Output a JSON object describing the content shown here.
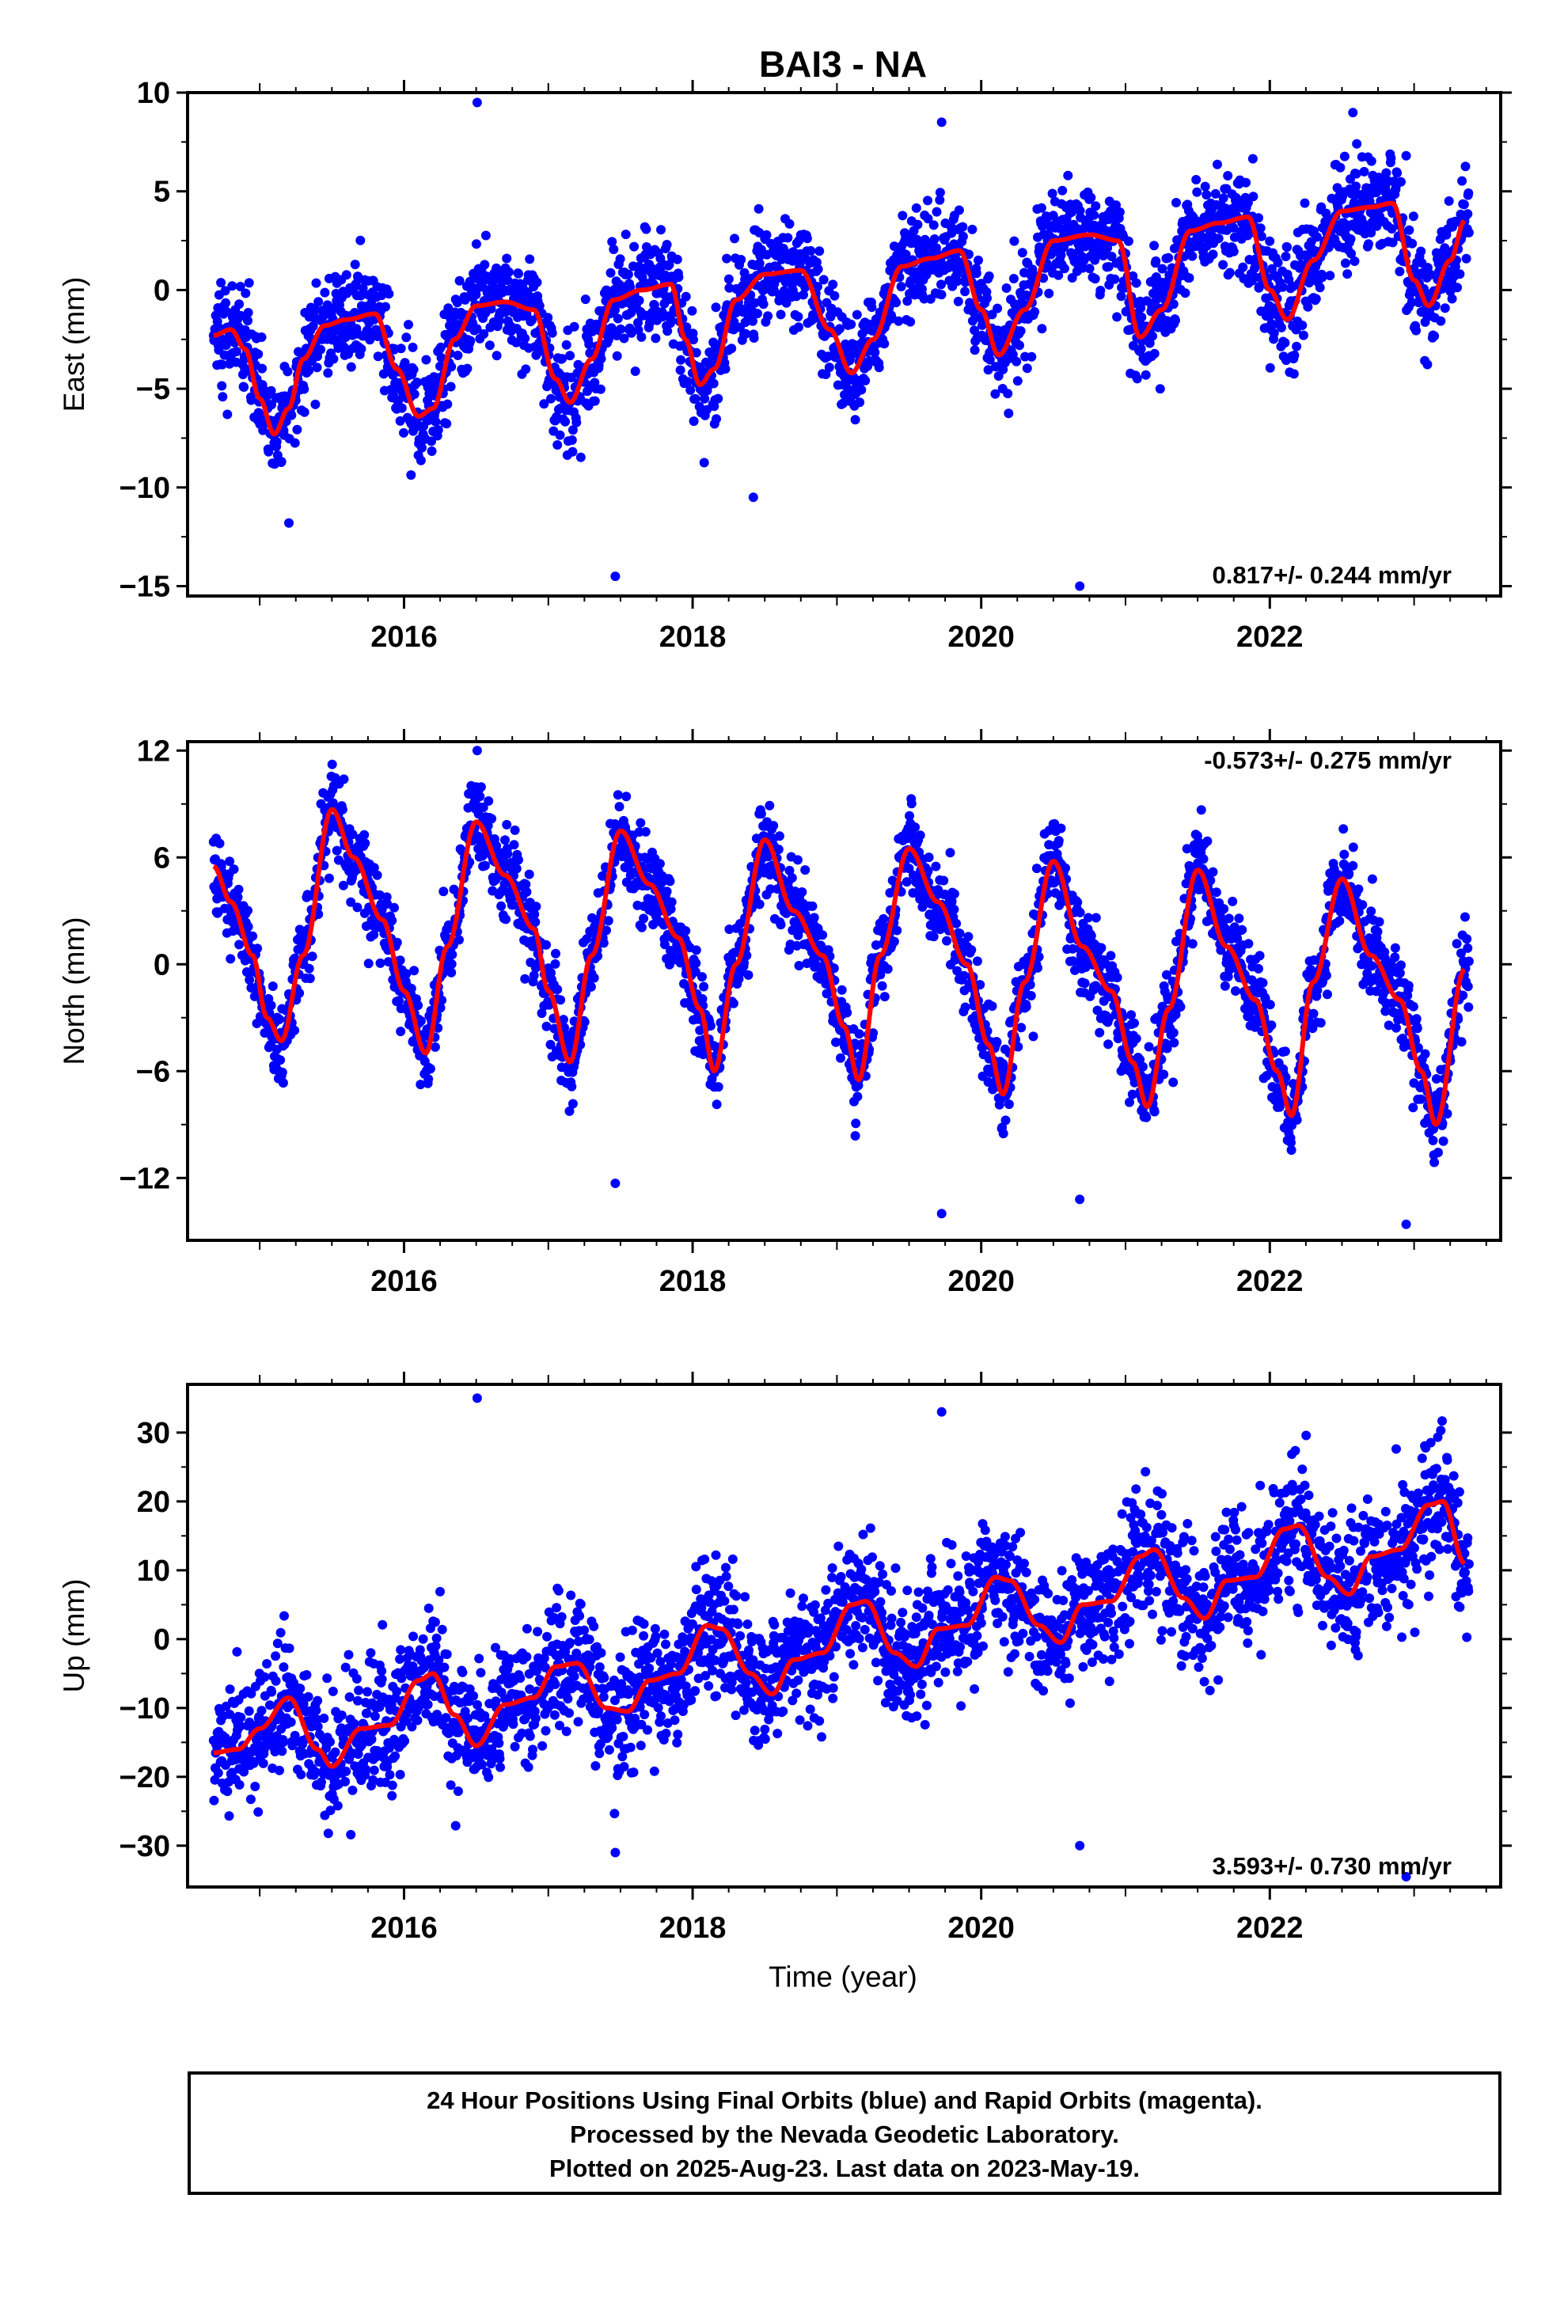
{
  "title": "BAI3 - NA",
  "xlabel": "Time (year)",
  "footer": {
    "lines": [
      "24 Hour Positions Using Final Orbits (blue) and Rapid Orbits (magenta).",
      "Processed by the Nevada Geodetic Laboratory.",
      "Plotted on 2025-Aug-23. Last data on 2023-May-19."
    ]
  },
  "colors": {
    "points": "#0000ff",
    "model": "#ff0000",
    "frame": "#000000"
  },
  "chart_data": [
    {
      "type": "scatter",
      "ylabel": "East (mm)",
      "rate_text": "0.817+/- 0.244 mm/yr",
      "rate_position": "bottom-right",
      "xlim": [
        2014.5,
        2023.6
      ],
      "ylim": [
        -15.5,
        10
      ],
      "yticks": [
        10,
        5,
        0,
        -5,
        -10,
        -15
      ],
      "ytick_labels": [
        "10",
        "5",
        "0",
        "-5",
        "-10",
        "-15"
      ],
      "xticks": [
        2016,
        2018,
        2020,
        2022
      ],
      "xtick_labels": [
        "2016",
        "2018",
        "2020",
        "2022"
      ],
      "model": {
        "name": "model",
        "x": [
          2014.68,
          2014.8,
          2014.9,
          2015.0,
          2015.1,
          2015.2,
          2015.3,
          2015.45,
          2015.6,
          2015.8,
          2015.95,
          2016.1,
          2016.2,
          2016.35,
          2016.5,
          2016.7,
          2016.9,
          2017.05,
          2017.15,
          2017.3,
          2017.45,
          2017.65,
          2017.85,
          2017.95,
          2018.05,
          2018.15,
          2018.3,
          2018.5,
          2018.75,
          2018.95,
          2019.1,
          2019.25,
          2019.45,
          2019.65,
          2019.85,
          2020.0,
          2020.12,
          2020.3,
          2020.5,
          2020.75,
          2020.95,
          2021.1,
          2021.25,
          2021.45,
          2021.65,
          2021.85,
          2022.0,
          2022.12,
          2022.3,
          2022.5,
          2022.7,
          2022.85,
          2023.0,
          2023.1,
          2023.25,
          2023.35
        ],
        "y": [
          -2.3,
          -2.0,
          -3.0,
          -5.5,
          -7.3,
          -6.0,
          -3.5,
          -1.8,
          -1.5,
          -1.2,
          -4.0,
          -6.4,
          -6.0,
          -2.5,
          -0.8,
          -0.6,
          -1.0,
          -4.5,
          -5.7,
          -3.5,
          -0.5,
          0.0,
          0.3,
          -2.5,
          -4.8,
          -4.0,
          -0.5,
          0.8,
          1.0,
          -2.0,
          -4.2,
          -2.5,
          1.2,
          1.6,
          2.0,
          -1.0,
          -3.3,
          -1.0,
          2.5,
          2.8,
          2.5,
          -2.4,
          -1.0,
          3.0,
          3.4,
          3.7,
          0.0,
          -1.5,
          1.5,
          4.0,
          4.2,
          4.4,
          0.5,
          -0.8,
          1.5,
          3.5
        ]
      },
      "points": {
        "name": "daily positions",
        "x_range": [
          2014.68,
          2023.38
        ],
        "approx_count": 2900,
        "scatter_sd": 1.3,
        "outlier_y_values": [
          9.5,
          8.5,
          6.8,
          -14.5,
          -15.0,
          -11.8,
          -10.5
        ]
      }
    },
    {
      "type": "scatter",
      "ylabel": "North (mm)",
      "rate_text": "-0.573+/- 0.275 mm/yr",
      "rate_position": "top-right",
      "xlim": [
        2014.5,
        2023.6
      ],
      "ylim": [
        -15.5,
        12.5
      ],
      "yticks": [
        12,
        6,
        0,
        -6,
        -12
      ],
      "ytick_labels": [
        "12",
        "6",
        "0",
        "-6",
        "-12"
      ],
      "xticks": [
        2016,
        2018,
        2020,
        2022
      ],
      "xtick_labels": [
        "2016",
        "2018",
        "2020",
        "2022"
      ],
      "model": {
        "name": "model",
        "x": [
          2014.68,
          2014.8,
          2014.95,
          2015.05,
          2015.15,
          2015.3,
          2015.5,
          2015.65,
          2015.85,
          2016.0,
          2016.15,
          2016.3,
          2016.5,
          2016.7,
          2016.9,
          2017.0,
          2017.15,
          2017.3,
          2017.5,
          2017.7,
          2017.9,
          2018.05,
          2018.15,
          2018.3,
          2018.5,
          2018.7,
          2018.9,
          2019.05,
          2019.15,
          2019.3,
          2019.5,
          2019.7,
          2019.9,
          2020.05,
          2020.15,
          2020.3,
          2020.5,
          2020.7,
          2020.9,
          2021.05,
          2021.15,
          2021.3,
          2021.5,
          2021.7,
          2021.9,
          2022.05,
          2022.15,
          2022.3,
          2022.5,
          2022.7,
          2022.9,
          2023.05,
          2023.15,
          2023.35
        ],
        "y": [
          5.5,
          3.5,
          0.5,
          -3.0,
          -4.3,
          0.5,
          8.7,
          6.0,
          2.5,
          -1.5,
          -5.0,
          1.0,
          8.0,
          5.0,
          2.0,
          -1.5,
          -5.5,
          0.5,
          7.5,
          4.5,
          1.5,
          -2.5,
          -6.0,
          0.0,
          7.0,
          3.0,
          0.5,
          -3.5,
          -6.5,
          0.5,
          6.5,
          3.5,
          0.0,
          -4.5,
          -7.3,
          -1.0,
          5.8,
          1.0,
          -1.5,
          -5.5,
          -8.0,
          -2.5,
          5.3,
          1.0,
          -2.0,
          -6.0,
          -8.5,
          -1.0,
          4.8,
          0.5,
          -2.0,
          -6.0,
          -9.0,
          -0.3
        ]
      },
      "points": {
        "name": "daily positions",
        "x_range": [
          2014.68,
          2023.38
        ],
        "approx_count": 2900,
        "scatter_sd": 1.2,
        "outlier_y_values": [
          12.0,
          -14.0,
          -14.6,
          -12.3,
          -13.2
        ]
      }
    },
    {
      "type": "scatter",
      "ylabel": "Up (mm)",
      "rate_text": "3.593+/- 0.730 mm/yr",
      "rate_position": "bottom-right",
      "xlim": [
        2014.5,
        2023.6
      ],
      "ylim": [
        -36,
        37
      ],
      "yticks": [
        30,
        20,
        10,
        0,
        -10,
        -20,
        -30
      ],
      "ytick_labels": [
        "30",
        "20",
        "10",
        "0",
        "-10",
        "-20",
        "-30"
      ],
      "xticks": [
        2016,
        2018,
        2020,
        2022
      ],
      "xtick_labels": [
        "2016",
        "2018",
        "2020",
        "2022"
      ],
      "model": {
        "name": "model",
        "x": [
          2014.68,
          2014.85,
          2015.0,
          2015.2,
          2015.4,
          2015.5,
          2015.7,
          2015.9,
          2016.1,
          2016.2,
          2016.35,
          2016.5,
          2016.7,
          2016.9,
          2017.05,
          2017.2,
          2017.4,
          2017.55,
          2017.7,
          2017.9,
          2018.1,
          2018.2,
          2018.4,
          2018.55,
          2018.7,
          2018.9,
          2019.1,
          2019.2,
          2019.4,
          2019.55,
          2019.7,
          2019.9,
          2020.1,
          2020.2,
          2020.4,
          2020.55,
          2020.7,
          2020.9,
          2021.1,
          2021.2,
          2021.4,
          2021.55,
          2021.7,
          2021.9,
          2022.1,
          2022.2,
          2022.4,
          2022.55,
          2022.7,
          2022.9,
          2023.1,
          2023.2,
          2023.35
        ],
        "y": [
          -16.5,
          -16.0,
          -13.0,
          -8.5,
          -16.0,
          -18.5,
          -13.0,
          -12.5,
          -6.0,
          -5.0,
          -11.0,
          -15.5,
          -9.5,
          -8.5,
          -4.0,
          -3.5,
          -10.0,
          -10.5,
          -6.0,
          -5.0,
          2.0,
          1.5,
          -5.0,
          -8.0,
          -3.0,
          -2.0,
          5.0,
          5.5,
          -2.0,
          -4.0,
          1.5,
          2.0,
          9.0,
          8.5,
          2.0,
          -0.5,
          5.0,
          5.5,
          12.0,
          13.0,
          6.0,
          3.0,
          8.5,
          9.0,
          16.0,
          16.5,
          9.0,
          6.5,
          12.0,
          13.0,
          19.5,
          20.0,
          11.0
        ]
      },
      "points": {
        "name": "daily positions",
        "x_range": [
          2014.68,
          2023.38
        ],
        "approx_count": 2900,
        "scatter_sd": 4.6,
        "outlier_y_values": [
          35.0,
          33.0,
          -34.5,
          -31.0,
          -30.0
        ]
      }
    }
  ]
}
